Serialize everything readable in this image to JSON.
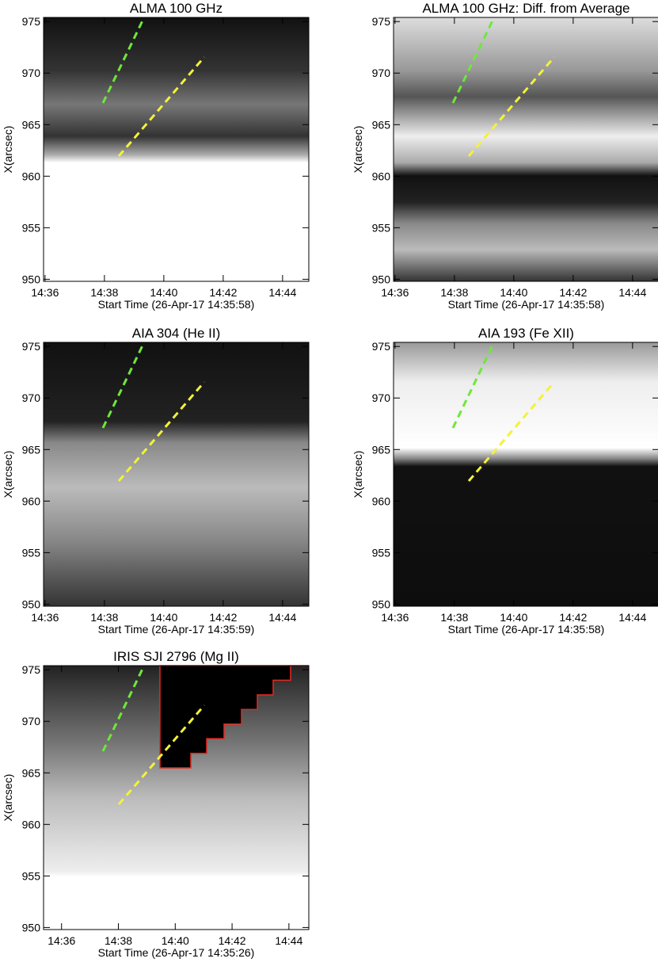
{
  "chart_data": [
    {
      "type": "heatmap",
      "title": "ALMA 100 GHz",
      "x_label": "Start Time (26-Apr-17 14:35:58)",
      "y_label": "X(arcsec)",
      "xlim": [
        "14:35:57",
        "14:44:53"
      ],
      "xticks": [
        "14:36",
        "14:38",
        "14:40",
        "14:42",
        "14:44"
      ],
      "ylim": [
        949.8,
        975.4
      ],
      "yticks": [
        950,
        955,
        960,
        965,
        970,
        975
      ]
    },
    {
      "type": "heatmap",
      "title": "ALMA 100 GHz: Diff. from Average",
      "x_label": "Start Time (26-Apr-17 14:35:58)",
      "y_label": "X(arcsec)",
      "xlim": [
        "14:35:57",
        "14:44:53"
      ],
      "xticks": [
        "14:36",
        "14:38",
        "14:40",
        "14:42",
        "14:44"
      ],
      "ylim": [
        949.8,
        975.4
      ],
      "yticks": [
        950,
        955,
        960,
        965,
        970,
        975
      ]
    },
    {
      "type": "heatmap",
      "title": "AIA 304 (He II)",
      "x_label": "Start Time (26-Apr-17 14:35:59)",
      "y_label": "X(arcsec)",
      "xlim": [
        "14:35:57",
        "14:44:53"
      ],
      "xticks": [
        "14:36",
        "14:38",
        "14:40",
        "14:42",
        "14:44"
      ],
      "ylim": [
        949.8,
        975.4
      ],
      "yticks": [
        950,
        955,
        960,
        965,
        970,
        975
      ]
    },
    {
      "type": "heatmap",
      "title": "AIA 193 (Fe XII)",
      "x_label": "Start Time (26-Apr-17 14:35:58)",
      "y_label": "X(arcsec)",
      "xlim": [
        "14:35:57",
        "14:44:53"
      ],
      "xticks": [
        "14:36",
        "14:38",
        "14:40",
        "14:42",
        "14:44"
      ],
      "ylim": [
        949.8,
        975.4
      ],
      "yticks": [
        950,
        955,
        960,
        965,
        970,
        975
      ]
    },
    {
      "type": "heatmap",
      "title": "IRIS SJI 2796 (Mg II)",
      "x_label": "Start Time (26-Apr-17 14:35:26)",
      "y_label": "X(arcsec)",
      "xlim": [
        "14:35:22",
        "14:44:42"
      ],
      "xticks": [
        "14:36",
        "14:38",
        "14:40",
        "14:42",
        "14:44"
      ],
      "ylim": [
        949.8,
        975.4
      ],
      "yticks": [
        950,
        955,
        960,
        965,
        970,
        975
      ]
    }
  ]
}
